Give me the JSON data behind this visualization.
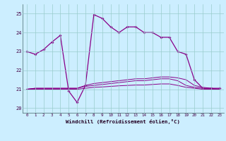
{
  "xlabel": "Windchill (Refroidissement éolien,°C)",
  "background_color": "#cceeff",
  "line_color": "#880088",
  "x_ticks": [
    0,
    1,
    2,
    3,
    4,
    5,
    6,
    7,
    8,
    9,
    10,
    11,
    12,
    13,
    14,
    15,
    16,
    17,
    18,
    19,
    20,
    21,
    22,
    23
  ],
  "ylim": [
    19.75,
    25.5
  ],
  "xlim": [
    -0.5,
    23.5
  ],
  "yticks": [
    20,
    21,
    22,
    23,
    24,
    25
  ],
  "series": {
    "temp": {
      "x": [
        0,
        1,
        2,
        3,
        4,
        5,
        6,
        7,
        8,
        9,
        10,
        11,
        12,
        13,
        14,
        15,
        16,
        17,
        18,
        19,
        20,
        21,
        22,
        23
      ],
      "y": [
        23.0,
        22.85,
        23.1,
        23.5,
        23.85,
        20.9,
        20.3,
        21.2,
        24.95,
        24.75,
        24.3,
        24.0,
        24.3,
        24.3,
        24.0,
        24.0,
        23.75,
        23.75,
        23.0,
        22.85,
        21.5,
        21.05,
        21.05,
        21.05
      ]
    },
    "line1": {
      "x": [
        0,
        1,
        2,
        3,
        4,
        5,
        6,
        7,
        8,
        9,
        10,
        11,
        12,
        13,
        14,
        15,
        16,
        17,
        18,
        19,
        20,
        21,
        22,
        23
      ],
      "y": [
        21.0,
        21.05,
        21.05,
        21.05,
        21.05,
        21.05,
        21.05,
        21.2,
        21.3,
        21.35,
        21.4,
        21.45,
        21.5,
        21.55,
        21.55,
        21.6,
        21.65,
        21.65,
        21.6,
        21.5,
        21.2,
        21.1,
        21.05,
        21.0
      ]
    },
    "line2": {
      "x": [
        0,
        1,
        2,
        3,
        4,
        5,
        6,
        7,
        8,
        9,
        10,
        11,
        12,
        13,
        14,
        15,
        16,
        17,
        18,
        19,
        20,
        21,
        22,
        23
      ],
      "y": [
        21.0,
        21.05,
        21.05,
        21.05,
        21.05,
        21.05,
        21.05,
        21.15,
        21.2,
        21.25,
        21.3,
        21.35,
        21.4,
        21.45,
        21.45,
        21.5,
        21.55,
        21.55,
        21.45,
        21.2,
        21.1,
        21.05,
        21.0,
        21.0
      ]
    },
    "line3": {
      "x": [
        0,
        1,
        2,
        3,
        4,
        5,
        6,
        7,
        8,
        9,
        10,
        11,
        12,
        13,
        14,
        15,
        16,
        17,
        18,
        19,
        20,
        21,
        22,
        23
      ],
      "y": [
        21.0,
        21.0,
        21.0,
        21.0,
        21.0,
        21.0,
        21.0,
        21.05,
        21.1,
        21.12,
        21.15,
        21.18,
        21.2,
        21.22,
        21.22,
        21.25,
        21.28,
        21.28,
        21.2,
        21.1,
        21.05,
        21.0,
        21.0,
        21.0
      ]
    }
  }
}
